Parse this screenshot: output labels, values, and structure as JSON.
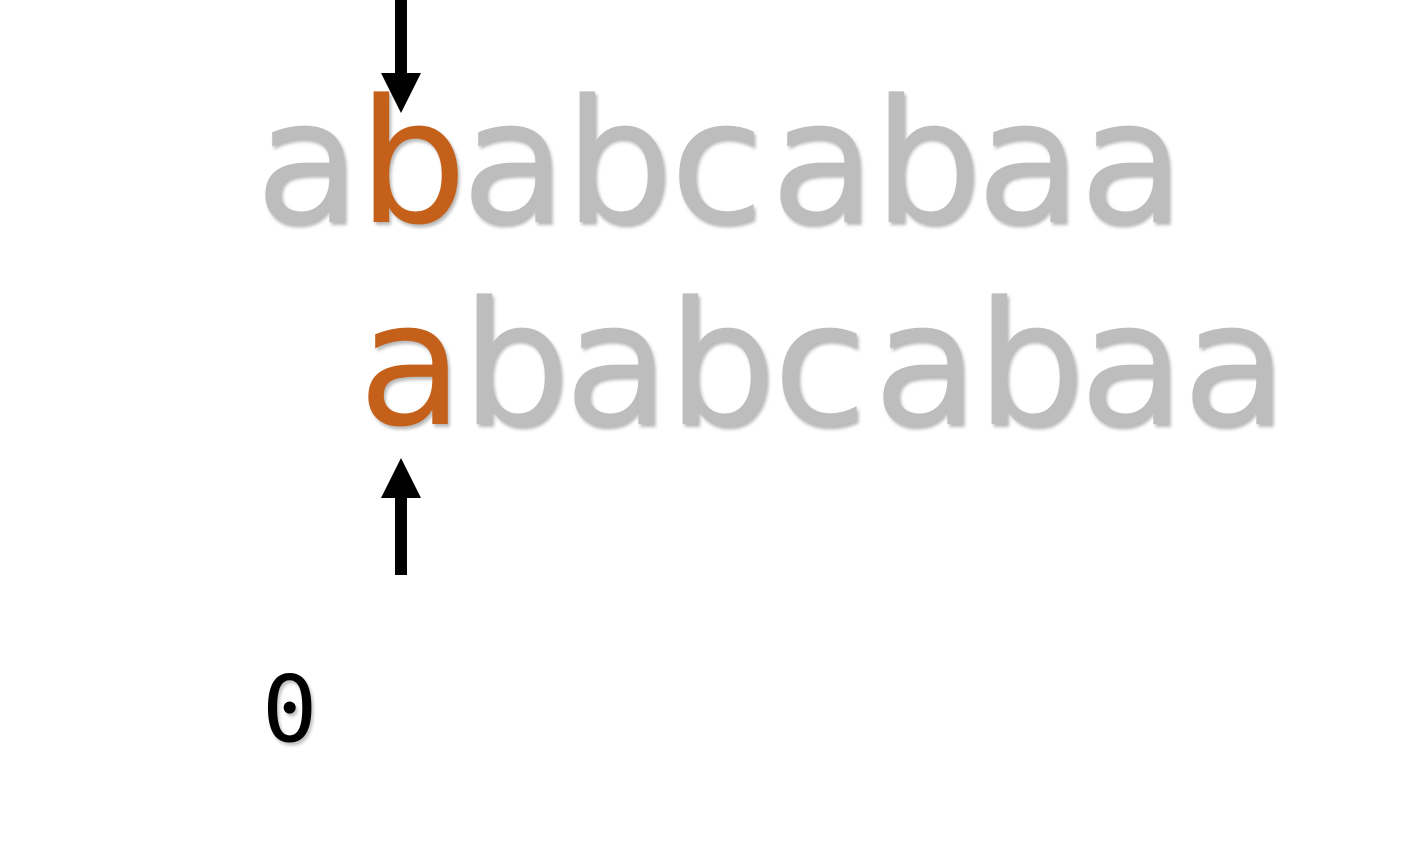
{
  "pattern_text": [
    "a",
    "b",
    "a",
    "b",
    "c",
    "a",
    "b",
    "a",
    "a"
  ],
  "shifted_text": [
    "a",
    "b",
    "a",
    "b",
    "c",
    "a",
    "b",
    "a",
    "a"
  ],
  "top_highlight_index": 1,
  "bottom_highlight_index": 0,
  "counter_value": "0",
  "colors": {
    "default_char": "#bdbdbd",
    "highlight_char": "#c4601a",
    "arrow": "#000000"
  },
  "icons": [
    "arrow-down-icon",
    "arrow-up-icon"
  ]
}
